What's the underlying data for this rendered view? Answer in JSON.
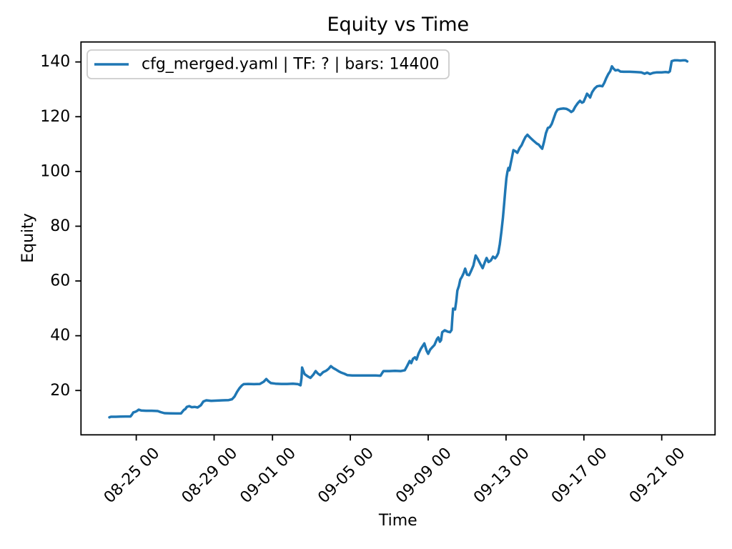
{
  "chart_data": {
    "type": "line",
    "title": "Equity vs Time",
    "xlabel": "Time",
    "ylabel": "Equity",
    "grid": false,
    "background_color": "#ffffff",
    "spine_color": "#000000",
    "legend_position": "upper left",
    "legend_edge_color": "#cccccc",
    "line_color": "#1f77b4",
    "x_axis": {
      "unit": "days relative to 08-25 00:00",
      "lim": [
        -2.84,
        29.74
      ],
      "tick_offsets": [
        0,
        4,
        7,
        11,
        15,
        19,
        23,
        27
      ],
      "tick_labels": [
        "08-25 00",
        "08-29 00",
        "09-01 00",
        "09-05 00",
        "09-09 00",
        "09-13 00",
        "09-17 00",
        "09-21 00"
      ],
      "tick_rotation_deg": 45
    },
    "y_axis": {
      "lim": [
        3.8,
        147.3
      ],
      "ticks": [
        20,
        40,
        60,
        80,
        100,
        120,
        140
      ],
      "tick_labels": [
        "20",
        "40",
        "60",
        "80",
        "100",
        "120",
        "140"
      ]
    },
    "series": [
      {
        "name": "cfg_merged.yaml | TF: ? | bars: 14400",
        "color": "#1f77b4",
        "points": [
          [
            -1.38,
            10.2
          ],
          [
            -1.3,
            10.4
          ],
          [
            -1.05,
            10.4
          ],
          [
            -0.8,
            10.45
          ],
          [
            -0.55,
            10.5
          ],
          [
            -0.3,
            10.5
          ],
          [
            -0.22,
            11.2
          ],
          [
            -0.15,
            12.0
          ],
          [
            -0.05,
            12.2
          ],
          [
            0.05,
            12.6
          ],
          [
            0.12,
            13.0
          ],
          [
            0.25,
            12.7
          ],
          [
            0.5,
            12.6
          ],
          [
            0.8,
            12.6
          ],
          [
            1.1,
            12.5
          ],
          [
            1.25,
            12.1
          ],
          [
            1.45,
            11.7
          ],
          [
            1.75,
            11.65
          ],
          [
            2.05,
            11.6
          ],
          [
            2.3,
            11.6
          ],
          [
            2.38,
            12.3
          ],
          [
            2.45,
            12.9
          ],
          [
            2.52,
            13.2
          ],
          [
            2.6,
            14.0
          ],
          [
            2.72,
            14.3
          ],
          [
            2.85,
            13.9
          ],
          [
            3.0,
            14.0
          ],
          [
            3.15,
            13.8
          ],
          [
            3.32,
            14.6
          ],
          [
            3.45,
            16.0
          ],
          [
            3.6,
            16.4
          ],
          [
            3.85,
            16.2
          ],
          [
            4.15,
            16.3
          ],
          [
            4.45,
            16.4
          ],
          [
            4.75,
            16.5
          ],
          [
            4.92,
            16.8
          ],
          [
            5.05,
            17.8
          ],
          [
            5.18,
            19.5
          ],
          [
            5.3,
            20.8
          ],
          [
            5.42,
            21.8
          ],
          [
            5.52,
            22.3
          ],
          [
            5.75,
            22.4
          ],
          [
            6.05,
            22.3
          ],
          [
            6.35,
            22.4
          ],
          [
            6.55,
            23.2
          ],
          [
            6.68,
            24.2
          ],
          [
            6.8,
            23.3
          ],
          [
            6.92,
            22.7
          ],
          [
            7.15,
            22.5
          ],
          [
            7.45,
            22.4
          ],
          [
            7.75,
            22.4
          ],
          [
            8.05,
            22.5
          ],
          [
            8.32,
            22.3
          ],
          [
            8.44,
            21.9
          ],
          [
            8.49,
            24.5
          ],
          [
            8.52,
            28.4
          ],
          [
            8.58,
            27.2
          ],
          [
            8.65,
            26.0
          ],
          [
            8.8,
            25.2
          ],
          [
            8.95,
            24.6
          ],
          [
            9.1,
            25.8
          ],
          [
            9.22,
            27.1
          ],
          [
            9.33,
            26.2
          ],
          [
            9.45,
            25.6
          ],
          [
            9.6,
            26.7
          ],
          [
            9.75,
            27.2
          ],
          [
            9.88,
            27.9
          ],
          [
            10.0,
            28.9
          ],
          [
            10.12,
            28.2
          ],
          [
            10.25,
            27.7
          ],
          [
            10.4,
            27.0
          ],
          [
            10.55,
            26.5
          ],
          [
            10.7,
            26.1
          ],
          [
            10.85,
            25.6
          ],
          [
            11.1,
            25.5
          ],
          [
            11.5,
            25.5
          ],
          [
            11.9,
            25.5
          ],
          [
            12.3,
            25.5
          ],
          [
            12.55,
            25.4
          ],
          [
            12.62,
            26.2
          ],
          [
            12.7,
            27.1
          ],
          [
            13.0,
            27.1
          ],
          [
            13.3,
            27.2
          ],
          [
            13.6,
            27.1
          ],
          [
            13.8,
            27.4
          ],
          [
            13.92,
            29.0
          ],
          [
            14.05,
            30.8
          ],
          [
            14.13,
            30.0
          ],
          [
            14.22,
            31.6
          ],
          [
            14.32,
            32.1
          ],
          [
            14.4,
            31.3
          ],
          [
            14.5,
            33.4
          ],
          [
            14.62,
            35.2
          ],
          [
            14.8,
            37.2
          ],
          [
            14.92,
            34.5
          ],
          [
            15.0,
            33.4
          ],
          [
            15.1,
            34.9
          ],
          [
            15.2,
            35.7
          ],
          [
            15.32,
            36.6
          ],
          [
            15.45,
            38.8
          ],
          [
            15.52,
            39.4
          ],
          [
            15.6,
            37.8
          ],
          [
            15.66,
            38.4
          ],
          [
            15.72,
            41.3
          ],
          [
            15.85,
            42.0
          ],
          [
            16.0,
            41.5
          ],
          [
            16.12,
            41.3
          ],
          [
            16.2,
            42.1
          ],
          [
            16.24,
            46.5
          ],
          [
            16.28,
            49.9
          ],
          [
            16.38,
            49.6
          ],
          [
            16.44,
            52.5
          ],
          [
            16.5,
            56.5
          ],
          [
            16.58,
            58.2
          ],
          [
            16.65,
            60.5
          ],
          [
            16.74,
            61.6
          ],
          [
            16.83,
            63.0
          ],
          [
            16.9,
            64.5
          ],
          [
            17.0,
            62.3
          ],
          [
            17.1,
            62.1
          ],
          [
            17.2,
            63.6
          ],
          [
            17.32,
            65.6
          ],
          [
            17.44,
            69.3
          ],
          [
            17.55,
            68.0
          ],
          [
            17.68,
            66.2
          ],
          [
            17.8,
            64.7
          ],
          [
            17.92,
            67.0
          ],
          [
            18.0,
            68.4
          ],
          [
            18.1,
            66.9
          ],
          [
            18.22,
            67.5
          ],
          [
            18.33,
            68.9
          ],
          [
            18.44,
            68.3
          ],
          [
            18.52,
            69.0
          ],
          [
            18.6,
            70.2
          ],
          [
            18.68,
            73.5
          ],
          [
            18.76,
            78.0
          ],
          [
            18.84,
            83.0
          ],
          [
            18.9,
            88.0
          ],
          [
            18.96,
            93.0
          ],
          [
            19.02,
            97.5
          ],
          [
            19.07,
            99.8
          ],
          [
            19.12,
            101.3
          ],
          [
            19.17,
            100.4
          ],
          [
            19.23,
            102.6
          ],
          [
            19.3,
            105.0
          ],
          [
            19.38,
            107.8
          ],
          [
            19.48,
            107.4
          ],
          [
            19.58,
            106.8
          ],
          [
            19.7,
            108.6
          ],
          [
            19.8,
            109.6
          ],
          [
            19.9,
            111.2
          ],
          [
            20.0,
            112.6
          ],
          [
            20.1,
            113.4
          ],
          [
            20.22,
            112.5
          ],
          [
            20.35,
            111.6
          ],
          [
            20.48,
            110.8
          ],
          [
            20.58,
            110.2
          ],
          [
            20.68,
            109.8
          ],
          [
            20.78,
            108.9
          ],
          [
            20.86,
            108.3
          ],
          [
            20.95,
            110.8
          ],
          [
            21.05,
            114.0
          ],
          [
            21.15,
            115.9
          ],
          [
            21.25,
            116.2
          ],
          [
            21.35,
            117.4
          ],
          [
            21.45,
            119.4
          ],
          [
            21.55,
            121.4
          ],
          [
            21.65,
            122.6
          ],
          [
            21.8,
            122.9
          ],
          [
            21.95,
            123.0
          ],
          [
            22.1,
            122.9
          ],
          [
            22.25,
            122.3
          ],
          [
            22.35,
            121.7
          ],
          [
            22.45,
            122.2
          ],
          [
            22.55,
            123.6
          ],
          [
            22.68,
            124.9
          ],
          [
            22.8,
            125.8
          ],
          [
            22.9,
            125.1
          ],
          [
            22.98,
            125.4
          ],
          [
            23.08,
            127.0
          ],
          [
            23.16,
            128.4
          ],
          [
            23.25,
            127.7
          ],
          [
            23.32,
            127.0
          ],
          [
            23.42,
            128.9
          ],
          [
            23.55,
            130.3
          ],
          [
            23.68,
            131.1
          ],
          [
            23.82,
            131.3
          ],
          [
            23.95,
            131.1
          ],
          [
            24.05,
            132.4
          ],
          [
            24.15,
            134.1
          ],
          [
            24.25,
            135.5
          ],
          [
            24.35,
            136.6
          ],
          [
            24.44,
            138.4
          ],
          [
            24.52,
            137.6
          ],
          [
            24.62,
            136.9
          ],
          [
            24.75,
            137.1
          ],
          [
            24.88,
            136.5
          ],
          [
            25.05,
            136.4
          ],
          [
            25.35,
            136.4
          ],
          [
            25.65,
            136.3
          ],
          [
            25.95,
            136.2
          ],
          [
            26.12,
            135.7
          ],
          [
            26.25,
            136.1
          ],
          [
            26.4,
            135.6
          ],
          [
            26.55,
            136.0
          ],
          [
            26.75,
            136.2
          ],
          [
            27.0,
            136.2
          ],
          [
            27.2,
            136.3
          ],
          [
            27.35,
            136.2
          ],
          [
            27.42,
            136.6
          ],
          [
            27.47,
            138.6
          ],
          [
            27.51,
            140.3
          ],
          [
            27.65,
            140.6
          ],
          [
            27.8,
            140.6
          ],
          [
            27.95,
            140.5
          ],
          [
            28.1,
            140.6
          ],
          [
            28.22,
            140.6
          ],
          [
            28.31,
            140.2
          ]
        ]
      }
    ]
  }
}
